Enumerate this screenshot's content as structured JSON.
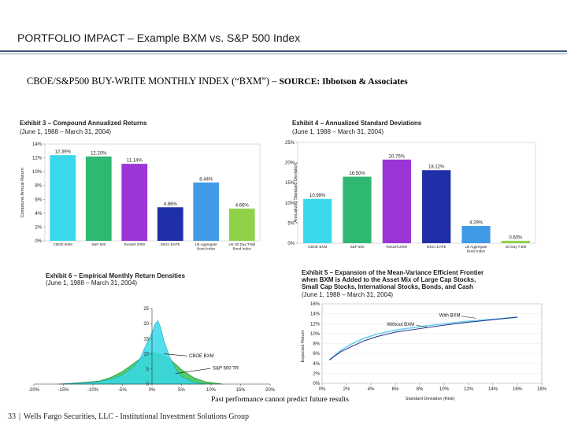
{
  "page": {
    "title": "PORTFOLIO IMPACT – Example BXM vs. S&P 500 Index",
    "subtitle": "CBOE/S&P500 BUY-WRITE MONTHLY INDEX (“BXM”) –",
    "source": "SOURCE: Ibbotson & Associates",
    "footnote": "Past performance cannot predict future results",
    "page_number": "33",
    "footer_text": "Wells Fargo Securities, LLC - Institutional Investment Solutions Group",
    "separator": "|"
  },
  "chart_data": [
    {
      "id": "exhibit3",
      "type": "bar",
      "title": "Exhibit 3 – Compound Annualized Returns",
      "subtitle": "(June 1, 1988 – March 31, 2004)",
      "ylabel": "Compound Annual Return",
      "categories": [
        "CBOE BXM",
        "S&P 500",
        "Russell 2000",
        "MSCI EAFE",
        "LB Aggregate Bond Index",
        "US 30 Day T-Bill"
      ],
      "values": [
        12.39,
        12.2,
        11.14,
        4.86,
        8.44,
        4.66
      ],
      "value_labels": [
        "12.39%",
        "12.20%",
        "11.14%",
        "4.86%",
        "8.44%",
        "4.66%"
      ],
      "colors": [
        "#3ad8ec",
        "#2fb872",
        "#9b35d6",
        "#1f2fa8",
        "#3f9ae8",
        "#8fd24a"
      ],
      "ylim": [
        0,
        14
      ],
      "yticks": [
        "0%",
        "2%",
        "4%",
        "6%",
        "8%",
        "10%",
        "12%",
        "14%"
      ]
    },
    {
      "id": "exhibit4",
      "type": "bar",
      "title": "Exhibit 4 – Annualized Standard Deviations",
      "subtitle": "(June 1, 1988 – March 31, 2004)",
      "ylabel": "Annualized Standard Deviation",
      "categories": [
        "CBOE BXM",
        "S&P 500",
        "Russell 2000",
        "MSCI EAFE",
        "LB Aggregate Bond Index",
        "30 Day T-Bill"
      ],
      "values": [
        10.99,
        16.5,
        20.75,
        18.12,
        4.29,
        0.6
      ],
      "value_labels": [
        "10.99%",
        "16.50%",
        "20.75%",
        "18.12%",
        "4.29%",
        "0.60%"
      ],
      "colors": [
        "#3ad8ec",
        "#2fb872",
        "#9b35d6",
        "#1f2fa8",
        "#3f9ae8",
        "#8fd24a"
      ],
      "ylim": [
        0,
        25
      ],
      "yticks": [
        "0%",
        "5%",
        "10%",
        "15%",
        "20%",
        "25%"
      ]
    },
    {
      "id": "exhibit6",
      "type": "area",
      "title": "Exhibit 6 – Empirical Monthly Return Densities",
      "subtitle": "(June 1, 1988 – March 31, 2004)",
      "xlim": [
        -20,
        20
      ],
      "ylim": [
        0,
        25
      ],
      "xticks": [
        "-20%",
        "-15%",
        "-10%",
        "-5%",
        "0%",
        "5%",
        "10%",
        "15%",
        "20%"
      ],
      "yticks": [
        "0",
        "5",
        "10",
        "15",
        "20",
        "25"
      ],
      "series": [
        {
          "name": "S&P 500 TR",
          "color": "#36c24a",
          "x": [
            -16,
            -12,
            -9,
            -7,
            -5,
            -3,
            -1,
            0,
            1,
            2,
            3,
            4,
            5,
            7,
            9,
            12
          ],
          "y": [
            0,
            0.5,
            1.0,
            2.2,
            4.2,
            7.0,
            9.8,
            10.5,
            10.2,
            9.4,
            8.2,
            6.6,
            4.8,
            2.2,
            0.8,
            0
          ]
        },
        {
          "name": "CBOE BXM",
          "color": "#37d8e8",
          "x": [
            -16,
            -12,
            -9,
            -7,
            -5,
            -3,
            -2,
            -1,
            0,
            0.5,
            1,
            1.5,
            2,
            3,
            4,
            5,
            7,
            9
          ],
          "y": [
            0,
            0.3,
            0.8,
            1.6,
            3.0,
            6.0,
            8.5,
            13.0,
            17.0,
            19.8,
            21.0,
            18.5,
            14.5,
            9.0,
            5.0,
            2.5,
            0.7,
            0
          ]
        }
      ]
    },
    {
      "id": "exhibit5",
      "type": "line",
      "title": "Exhibit 5 – Expansion of the Mean-Variance Efficient Frontier when BXM is Added to the Asset Mix of Large Cap Stocks, Small Cap Stocks, International Stocks, Bonds, and Cash",
      "subtitle": "(June 1, 1988 – March 31, 2004)",
      "xlabel": "Standard Deviation (Risk)",
      "ylabel": "Expected Return",
      "xlim": [
        0,
        18
      ],
      "ylim": [
        0,
        16
      ],
      "xticks": [
        "0%",
        "2%",
        "4%",
        "6%",
        "8%",
        "10%",
        "12%",
        "14%",
        "16%",
        "18%"
      ],
      "yticks": [
        "0%",
        "2%",
        "4%",
        "6%",
        "8%",
        "10%",
        "12%",
        "14%",
        "16%"
      ],
      "series": [
        {
          "name": "With BXM",
          "color": "#6fd0ec",
          "x": [
            0.6,
            1.5,
            2.5,
            3.5,
            4.5,
            6,
            8,
            10,
            12,
            14,
            16
          ],
          "y": [
            4.7,
            6.6,
            8.0,
            9.1,
            9.9,
            10.7,
            11.4,
            12.0,
            12.5,
            12.9,
            13.3
          ]
        },
        {
          "name": "Without BXM",
          "color": "#1f2f8a",
          "x": [
            0.6,
            1.5,
            2.5,
            3.5,
            4.5,
            6,
            8,
            10,
            12,
            14,
            16
          ],
          "y": [
            4.7,
            6.3,
            7.5,
            8.6,
            9.4,
            10.3,
            11.0,
            11.7,
            12.3,
            12.8,
            13.3
          ]
        }
      ]
    }
  ]
}
